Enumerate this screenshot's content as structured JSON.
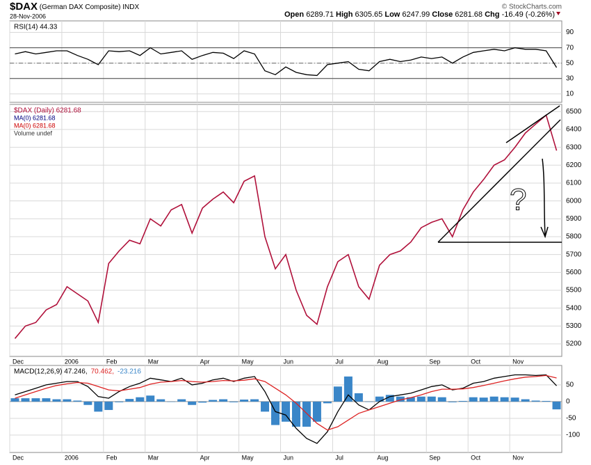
{
  "header": {
    "symbol": "$DAX",
    "name": "(German DAX Composite)",
    "exchange": "INDX",
    "date": "28-Nov-2006",
    "credit": "© StockCharts.com",
    "quote": [
      {
        "label": "Open",
        "value": "6289.71"
      },
      {
        "label": "High",
        "value": "6305.65"
      },
      {
        "label": "Low",
        "value": "6247.99"
      },
      {
        "label": "Close",
        "value": "6281.68"
      },
      {
        "label": "Chg",
        "value": "-16.49 (-0.26%)"
      }
    ]
  },
  "chart_data": [
    {
      "type": "line",
      "ylim": [
        -1,
        105
      ],
      "yticks": [
        90,
        70,
        50,
        30,
        10
      ],
      "grid": true,
      "levels": [
        70,
        50,
        30
      ],
      "level_styles": [
        "solid",
        "dashdot",
        "solid"
      ],
      "legend_layout": "row",
      "series": [
        {
          "name": "RSI(14) 44.33",
          "color": "#000000",
          "values": [
            62,
            65,
            62,
            64,
            66,
            66,
            60,
            55,
            48,
            66,
            65,
            66,
            60,
            70,
            62,
            64,
            66,
            55,
            60,
            64,
            63,
            56,
            66,
            62,
            40,
            35,
            45,
            38,
            35,
            34,
            48,
            50,
            52,
            42,
            40,
            52,
            55,
            52,
            54,
            58,
            56,
            58,
            50,
            58,
            64,
            66,
            68,
            66,
            70,
            68,
            68,
            66,
            44.33
          ]
        }
      ]
    },
    {
      "type": "line",
      "ylim": [
        5130,
        6540
      ],
      "yticks": [
        5200,
        5300,
        5400,
        5500,
        5600,
        5700,
        5800,
        5900,
        6000,
        6100,
        6200,
        6300,
        6400,
        6500
      ],
      "grid": true,
      "legend_layout": "column",
      "categories": [
        "Dec",
        null,
        null,
        null,
        null,
        "2006",
        null,
        null,
        null,
        "Feb",
        null,
        null,
        null,
        "Mar",
        null,
        null,
        null,
        null,
        "Apr",
        null,
        null,
        null,
        "May",
        null,
        null,
        null,
        "Jun",
        null,
        null,
        null,
        null,
        "Jul",
        null,
        null,
        null,
        "Aug",
        null,
        null,
        null,
        null,
        "Sep",
        null,
        null,
        null,
        "Oct",
        null,
        null,
        null,
        "Nov",
        null,
        null,
        null,
        null
      ],
      "series": [
        {
          "name": "$DAX (Daily) 6281.68",
          "color": "#b0103a",
          "values": [
            5230,
            5300,
            5320,
            5390,
            5420,
            5520,
            5480,
            5440,
            5320,
            5650,
            5720,
            5780,
            5760,
            5900,
            5860,
            5950,
            5980,
            5820,
            5960,
            6010,
            6050,
            5990,
            6110,
            6140,
            5800,
            5620,
            5700,
            5500,
            5360,
            5310,
            5520,
            5660,
            5700,
            5520,
            5450,
            5640,
            5700,
            5720,
            5770,
            5850,
            5880,
            5900,
            5800,
            5950,
            6050,
            6120,
            6200,
            6230,
            6300,
            6380,
            6430,
            6480,
            6281.68
          ]
        }
      ],
      "legend_extra": [
        {
          "text": "MA(0) 6281.68",
          "color": "#000080"
        },
        {
          "text": "MA(0) 6281.68",
          "color": "#cc0000"
        },
        {
          "text": "Volume undef",
          "color": "#333333"
        }
      ],
      "annotations": [
        "?"
      ]
    },
    {
      "type": "line",
      "ylim": [
        -152,
        108
      ],
      "yticks": [
        50,
        0,
        -50,
        -100
      ],
      "grid": true,
      "legend_layout": "row",
      "categories": [
        "Dec",
        null,
        null,
        null,
        null,
        "2006",
        null,
        null,
        null,
        "Feb",
        null,
        null,
        null,
        "Mar",
        null,
        null,
        null,
        null,
        "Apr",
        null,
        null,
        null,
        "May",
        null,
        null,
        null,
        "Jun",
        null,
        null,
        null,
        null,
        "Jul",
        null,
        null,
        null,
        "Aug",
        null,
        null,
        null,
        null,
        "Sep",
        null,
        null,
        null,
        "Oct",
        null,
        null,
        null,
        "Nov",
        null,
        null,
        null,
        null
      ],
      "series": [
        {
          "name": "-23.216",
          "type": "bar",
          "color": "#3a86c8",
          "values": [
            10,
            10,
            10,
            10,
            7,
            7,
            3,
            -10,
            -30,
            -25,
            -2,
            8,
            13,
            18,
            7,
            0,
            7,
            -10,
            -3,
            5,
            7,
            -2,
            6,
            7,
            -30,
            -70,
            -60,
            -75,
            -75,
            -60,
            -5,
            45,
            75,
            25,
            0,
            15,
            20,
            15,
            13,
            15,
            15,
            13,
            -2,
            2,
            13,
            12,
            15,
            13,
            12,
            7,
            3,
            2,
            -23.216
          ]
        },
        {
          "name": "MACD(12,26,9) 47.246,",
          "type": "line",
          "color": "#000000",
          "values": [
            20,
            30,
            40,
            50,
            55,
            60,
            60,
            45,
            15,
            10,
            30,
            45,
            55,
            70,
            65,
            60,
            70,
            50,
            55,
            65,
            70,
            60,
            70,
            75,
            30,
            -30,
            -40,
            -80,
            -110,
            -125,
            -90,
            -30,
            20,
            -10,
            -25,
            0,
            15,
            20,
            25,
            35,
            45,
            50,
            35,
            40,
            55,
            60,
            70,
            75,
            80,
            80,
            78,
            80,
            47.246
          ]
        },
        {
          "name": "70.462,",
          "type": "line",
          "color": "#dd2222",
          "values": [
            10,
            20,
            30,
            40,
            48,
            53,
            57,
            55,
            45,
            35,
            32,
            37,
            42,
            52,
            58,
            60,
            63,
            60,
            58,
            60,
            63,
            62,
            64,
            68,
            60,
            40,
            20,
            -5,
            -35,
            -65,
            -85,
            -75,
            -55,
            -35,
            -25,
            -15,
            -5,
            5,
            12,
            20,
            30,
            37,
            37,
            38,
            42,
            48,
            55,
            62,
            68,
            73,
            75,
            78,
            70.462
          ]
        }
      ]
    }
  ]
}
